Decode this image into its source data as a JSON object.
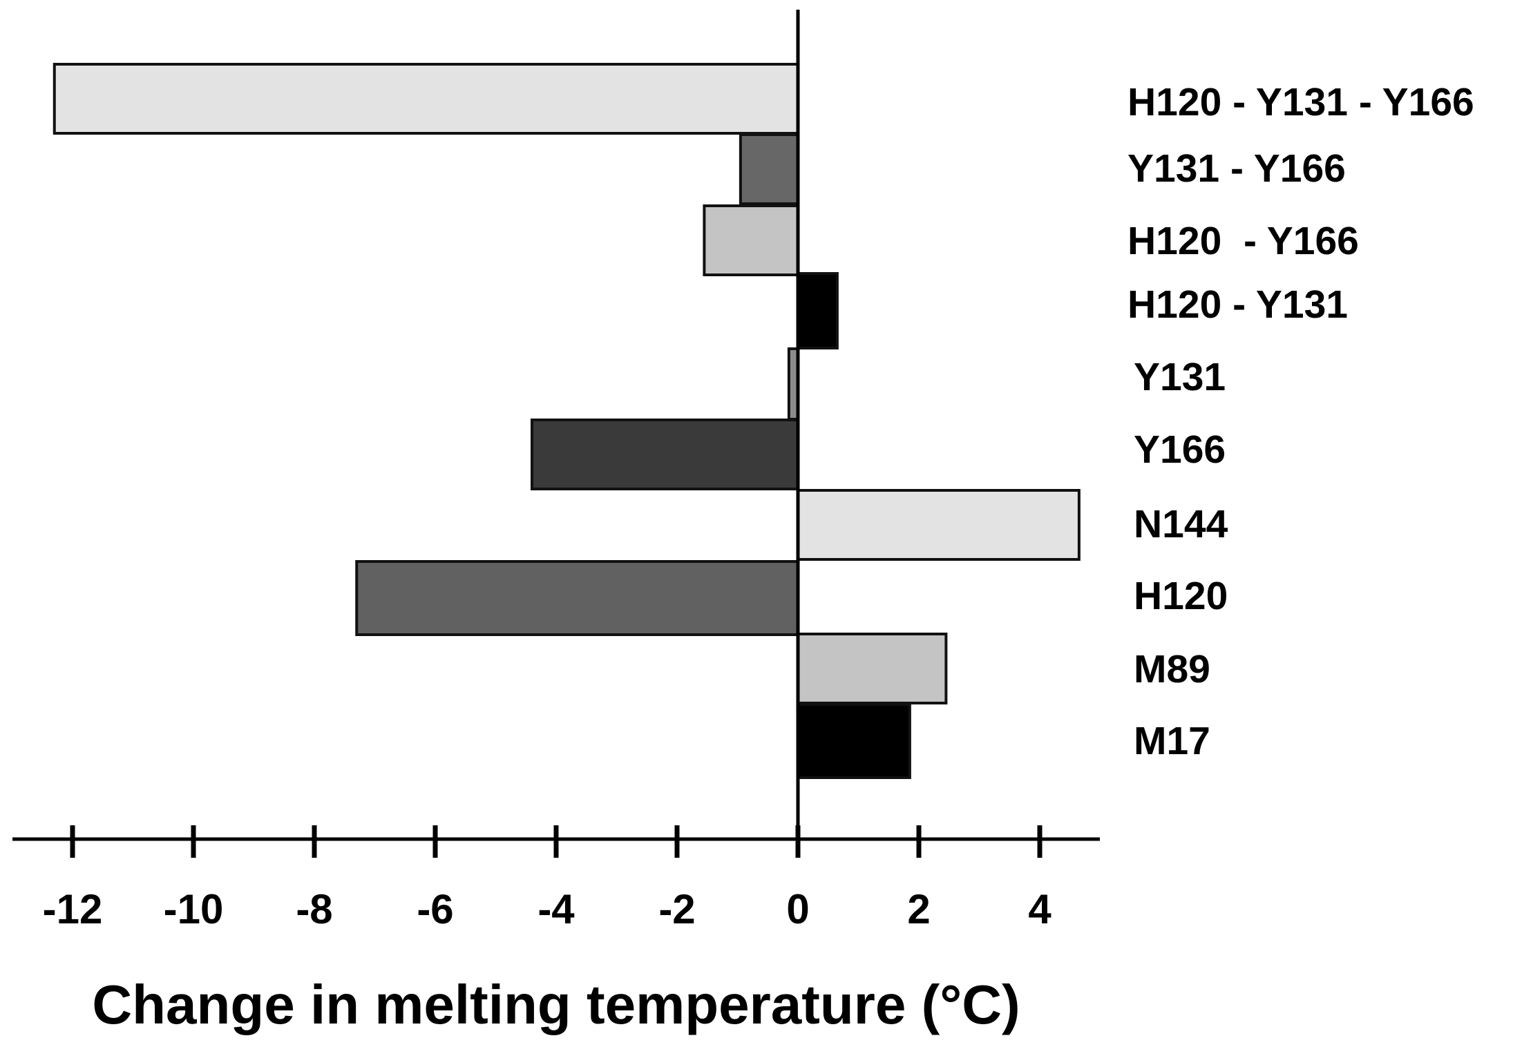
{
  "chart_data": {
    "type": "bar",
    "orientation": "horizontal",
    "title": "",
    "xlabel": "Change in melting temperature (°C)",
    "ylabel": "",
    "xlim": [
      -12.6,
      4.8
    ],
    "xticks": [
      -12,
      -10,
      -8,
      -6,
      -4,
      -2,
      0,
      2,
      4
    ],
    "xtick_labels": [
      "-12",
      "-10",
      "-8",
      "-6",
      "-4",
      "-2",
      "0",
      "2",
      "4"
    ],
    "grid": false,
    "legend": "none",
    "categories": [
      "H120 - Y131 - Y166",
      "Y131 - Y166",
      "H120  - Y166",
      "H120 - Y131",
      "Y131",
      "Y166",
      "N144",
      "H120",
      "M89",
      "M17"
    ],
    "values": [
      -12.3,
      -0.95,
      -1.55,
      0.65,
      -0.15,
      -4.4,
      4.65,
      -7.3,
      2.45,
      1.85
    ],
    "bar_colors": [
      "#e3e3e3",
      "#676767",
      "#c4c4c4",
      "#000000",
      "#8c8c8c",
      "#3a3a3a",
      "#e3e3e3",
      "#616161",
      "#c4c4c4",
      "#000000"
    ]
  }
}
